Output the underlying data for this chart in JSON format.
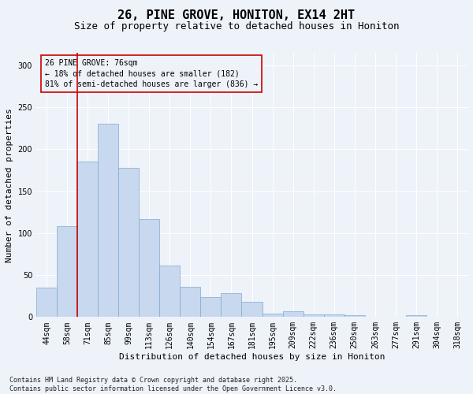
{
  "title": "26, PINE GROVE, HONITON, EX14 2HT",
  "subtitle": "Size of property relative to detached houses in Honiton",
  "xlabel": "Distribution of detached houses by size in Honiton",
  "ylabel": "Number of detached properties",
  "footer_line1": "Contains HM Land Registry data © Crown copyright and database right 2025.",
  "footer_line2": "Contains public sector information licensed under the Open Government Licence v3.0.",
  "annotation_line1": "26 PINE GROVE: 76sqm",
  "annotation_line2": "← 18% of detached houses are smaller (182)",
  "annotation_line3": "81% of semi-detached houses are larger (836) →",
  "bar_color": "#c8d8ef",
  "bar_edge_color": "#7eabd0",
  "red_line_color": "#cc0000",
  "red_line_x": 1.5,
  "categories": [
    "44sqm",
    "58sqm",
    "71sqm",
    "85sqm",
    "99sqm",
    "113sqm",
    "126sqm",
    "140sqm",
    "154sqm",
    "167sqm",
    "181sqm",
    "195sqm",
    "209sqm",
    "222sqm",
    "236sqm",
    "250sqm",
    "263sqm",
    "277sqm",
    "291sqm",
    "304sqm",
    "318sqm"
  ],
  "values": [
    35,
    108,
    185,
    230,
    178,
    117,
    61,
    36,
    24,
    29,
    18,
    4,
    7,
    3,
    3,
    2,
    0,
    0,
    2,
    0,
    0
  ],
  "ylim": [
    0,
    315
  ],
  "yticks": [
    0,
    50,
    100,
    150,
    200,
    250,
    300
  ],
  "background_color": "#eef2f9",
  "grid_color": "#ffffff",
  "title_fontsize": 11,
  "subtitle_fontsize": 9,
  "axis_label_fontsize": 8,
  "tick_fontsize": 7,
  "annotation_fontsize": 7,
  "footer_fontsize": 6
}
